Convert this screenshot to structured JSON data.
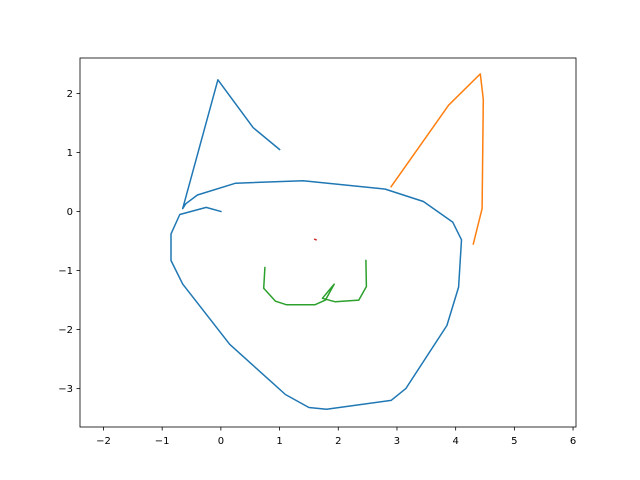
{
  "chart_data": {
    "type": "line",
    "title": "",
    "xlabel": "",
    "ylabel": "",
    "xlim": [
      -2.4,
      6.05
    ],
    "ylim": [
      -3.65,
      2.6
    ],
    "xticks": [
      -2,
      -1,
      0,
      1,
      2,
      3,
      4,
      5,
      6
    ],
    "yticks": [
      -3,
      -2,
      -1,
      0,
      1,
      2
    ],
    "grid": false,
    "legend": "none",
    "series": [
      {
        "color": "#1f77b4",
        "points": [
          [
            1.0,
            1.05
          ],
          [
            0.55,
            1.42
          ],
          [
            -0.05,
            2.23
          ],
          [
            -0.65,
            0.05
          ],
          [
            -0.6,
            0.13
          ],
          [
            -0.4,
            0.28
          ],
          [
            0.25,
            0.48
          ],
          [
            1.4,
            0.52
          ],
          [
            2.8,
            0.38
          ],
          [
            3.45,
            0.17
          ],
          [
            3.95,
            -0.18
          ],
          [
            4.1,
            -0.48
          ],
          [
            4.05,
            -1.28
          ],
          [
            3.85,
            -1.93
          ],
          [
            3.15,
            -3.0
          ],
          [
            2.9,
            -3.2
          ],
          [
            1.8,
            -3.35
          ],
          [
            1.5,
            -3.32
          ],
          [
            1.1,
            -3.1
          ],
          [
            0.15,
            -2.25
          ],
          [
            -0.65,
            -1.23
          ],
          [
            -0.85,
            -0.83
          ],
          [
            -0.85,
            -0.38
          ],
          [
            -0.7,
            -0.05
          ],
          [
            -0.25,
            0.07
          ],
          [
            0.0,
            0.0
          ]
        ]
      },
      {
        "color": "#ff7f0e",
        "points": [
          [
            2.9,
            0.42
          ],
          [
            3.88,
            1.8
          ],
          [
            4.42,
            2.33
          ],
          [
            4.47,
            1.9
          ],
          [
            4.45,
            0.05
          ],
          [
            4.3,
            -0.55
          ]
        ]
      },
      {
        "color": "#2ca02c",
        "points": [
          [
            0.75,
            -0.95
          ],
          [
            0.73,
            -1.3
          ],
          [
            0.93,
            -1.52
          ],
          [
            1.12,
            -1.58
          ],
          [
            1.6,
            -1.58
          ],
          [
            1.78,
            -1.5
          ],
          [
            1.93,
            -1.23
          ],
          [
            1.73,
            -1.47
          ],
          [
            1.95,
            -1.53
          ],
          [
            2.35,
            -1.5
          ],
          [
            2.48,
            -1.27
          ],
          [
            2.47,
            -0.83
          ]
        ]
      },
      {
        "color": "#d62728",
        "points": [
          [
            1.6,
            -0.47
          ],
          [
            1.62,
            -0.48
          ]
        ]
      }
    ]
  }
}
